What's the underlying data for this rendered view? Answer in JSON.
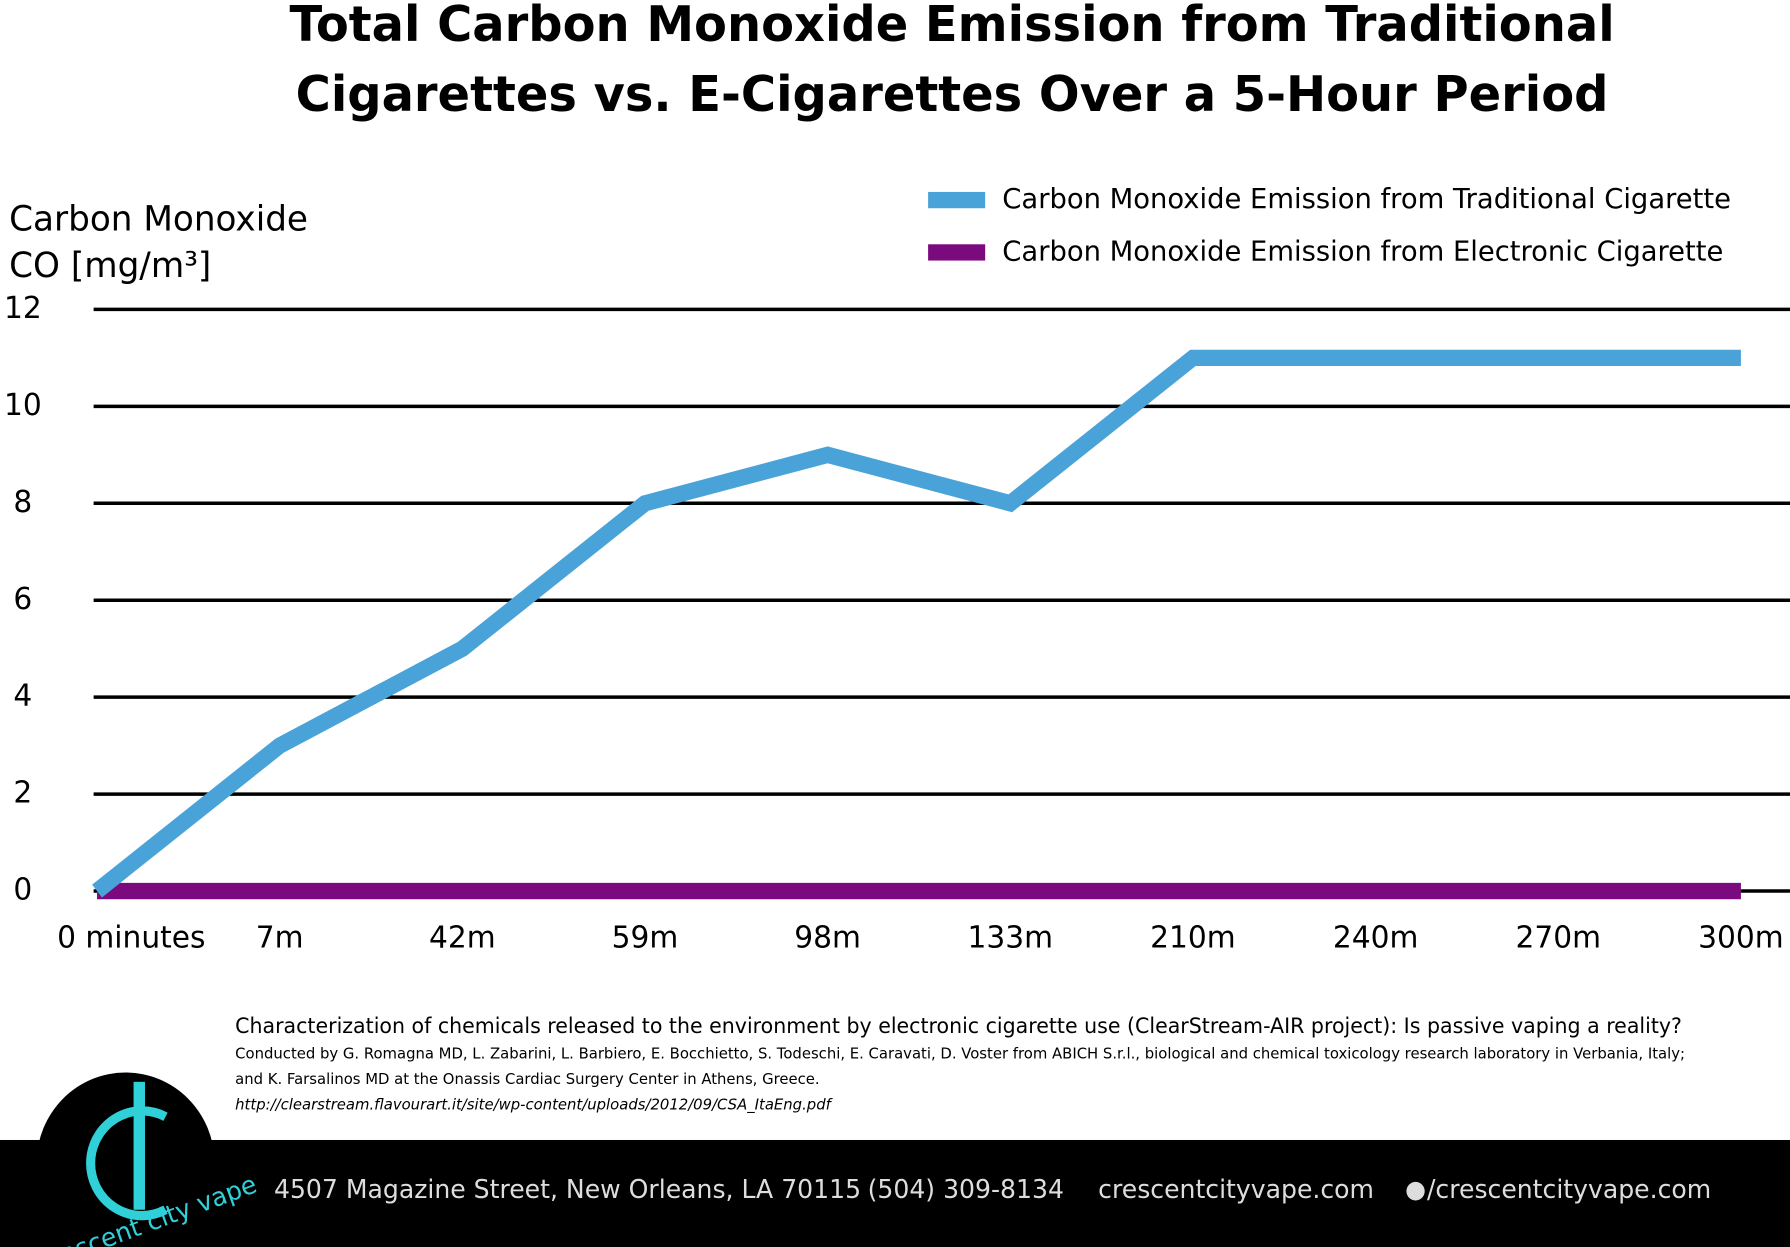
{
  "chart_data": {
    "type": "line",
    "title": [
      "Total Carbon Monoxide Emission from Traditional",
      "Cigarettes vs. E-Cigarettes Over a 5-Hour Period"
    ],
    "ylabel": [
      "Carbon Monoxide",
      "CO [mg/m³]"
    ],
    "categories": [
      "0 minutes",
      "7m",
      "42m",
      "59m",
      "98m",
      "133m",
      "210m",
      "240m",
      "270m",
      "300m"
    ],
    "series": [
      {
        "name": "Carbon Monoxide Emission from Traditional Cigarette",
        "color": "#4aa3d8",
        "values": [
          0,
          3,
          5,
          8,
          9,
          8,
          11,
          11,
          11,
          11
        ]
      },
      {
        "name": "Carbon Monoxide Emission from Electronic Cigarette",
        "color": "#7b0a7f",
        "values": [
          0,
          0,
          0,
          0,
          0,
          0,
          0,
          0,
          0,
          0
        ]
      }
    ],
    "ylim": [
      0,
      12
    ],
    "yticks": [
      0,
      2,
      4,
      6,
      8,
      10,
      12
    ],
    "grid": true,
    "legend": "top-right"
  },
  "source": {
    "title": "Characterization of chemicals released to the environment by electronic cigarette use (ClearStream-AIR project): Is passive vaping a reality?",
    "authors": "Conducted by G. Romagna MD, L. Zabarini, L. Barbiero, E. Bocchietto, S. Todeschi, E. Caravati, D. Voster from ABICH S.r.l., biological and chemical toxicology research laboratory in Verbania, Italy;",
    "authors2": "and K. Farsalinos MD at the Onassis Cardiac Surgery Center in Athens, Greece.",
    "url": "http://clearstream.flavourart.it/site/wp-content/uploads/2012/09/CSA_ItaEng.pdf"
  },
  "footer": {
    "logo": "crescent city vape",
    "address": "4507 Magazine Street, New Orleans, LA 70115",
    "phone": "(504) 309-8134",
    "website": "crescentcityvape.com",
    "facebook": "/crescentcityvape.com"
  }
}
